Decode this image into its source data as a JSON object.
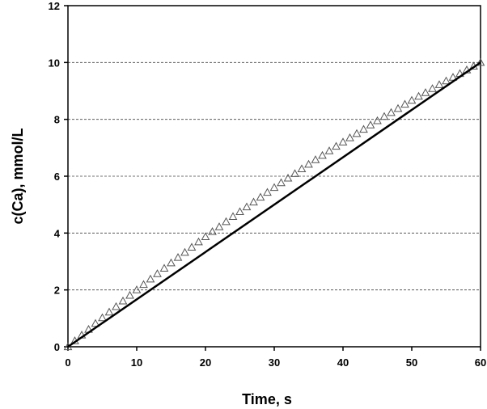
{
  "chart_data": {
    "type": "scatter",
    "x_label": "Time, s",
    "y_label": "c(Ca), mmol/L",
    "xlim": [
      0,
      60
    ],
    "xticks": [
      0,
      10,
      20,
      30,
      40,
      50,
      60
    ],
    "ylim": [
      0,
      12
    ],
    "yticks": [
      0,
      2,
      4,
      6,
      8,
      10,
      12
    ],
    "grid": true,
    "series": [
      {
        "marker": "triangle",
        "color": "#555555",
        "x": [
          0,
          1,
          2,
          3,
          4,
          5,
          6,
          7,
          8,
          9,
          10,
          11,
          12,
          13,
          14,
          15,
          16,
          17,
          18,
          19,
          20,
          21,
          22,
          23,
          24,
          25,
          26,
          27,
          28,
          29,
          30,
          31,
          32,
          33,
          34,
          35,
          36,
          37,
          38,
          39,
          40,
          41,
          42,
          43,
          44,
          45,
          46,
          47,
          48,
          49,
          50,
          51,
          52,
          53,
          54,
          55,
          56,
          57,
          58,
          59,
          60
        ],
        "values": [
          0,
          0.21,
          0.41,
          0.61,
          0.82,
          1.02,
          1.22,
          1.41,
          1.61,
          1.81,
          2.0,
          2.19,
          2.38,
          2.57,
          2.76,
          2.95,
          3.14,
          3.32,
          3.5,
          3.69,
          3.87,
          4.05,
          4.22,
          4.4,
          4.58,
          4.75,
          4.92,
          5.09,
          5.26,
          5.43,
          5.6,
          5.77,
          5.93,
          6.09,
          6.26,
          6.42,
          6.58,
          6.73,
          6.89,
          7.05,
          7.2,
          7.35,
          7.5,
          7.65,
          7.8,
          7.95,
          8.1,
          8.24,
          8.38,
          8.53,
          8.67,
          8.81,
          8.94,
          9.08,
          9.22,
          9.35,
          9.48,
          9.61,
          9.74,
          9.87,
          10
        ]
      },
      {
        "marker": "line",
        "color": "#000000",
        "x": [
          0,
          60
        ],
        "values": [
          0,
          10
        ]
      }
    ]
  }
}
